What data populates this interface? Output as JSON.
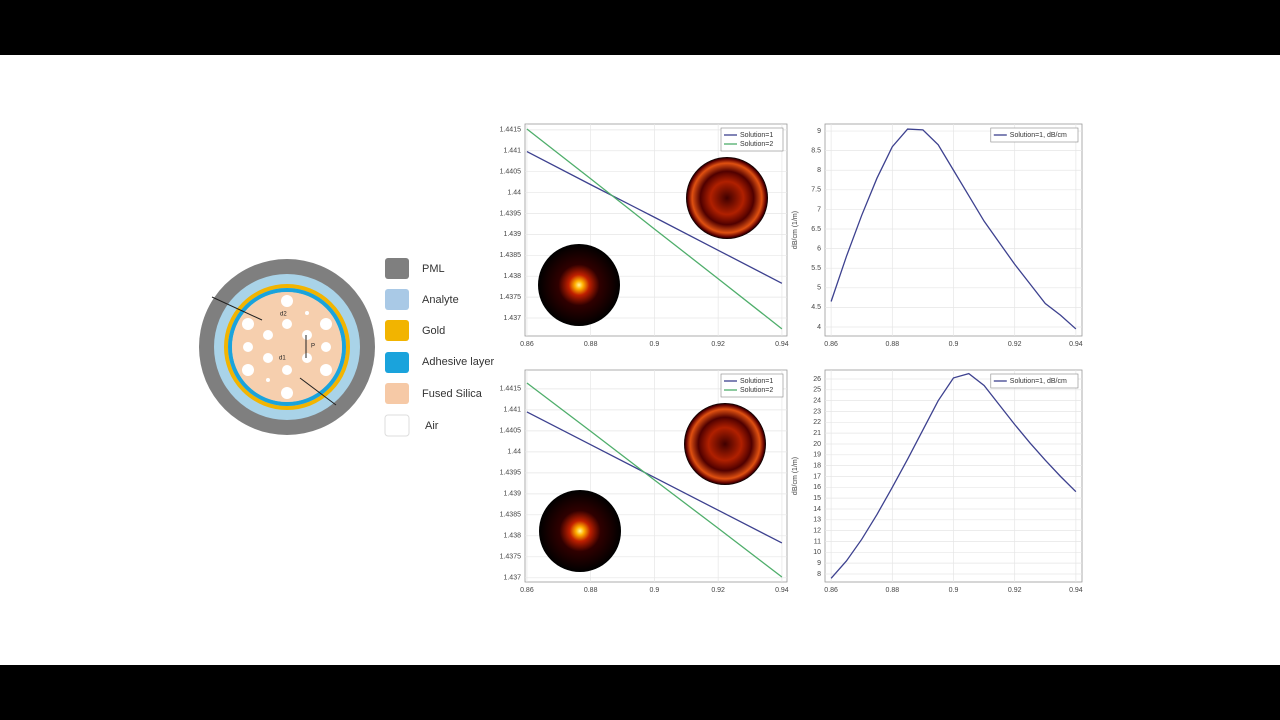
{
  "diagram": {
    "legend": [
      "PML",
      "Analyte",
      "Gold",
      "Adhesive layer",
      "Fused Silica",
      "Air"
    ],
    "labels": [
      "d2",
      "d1",
      "P"
    ]
  },
  "chart_data": [
    {
      "type": "line",
      "x": [
        0.86,
        0.88,
        0.9,
        0.92,
        0.94
      ],
      "xlim": [
        0.8594,
        0.9416
      ],
      "xticks": [
        0.86,
        0.88,
        0.9,
        0.92,
        0.94
      ],
      "ylim": [
        1.43657,
        1.44164
      ],
      "yticks": [
        1.437,
        1.4375,
        1.438,
        1.4385,
        1.439,
        1.4395,
        1.44,
        1.4405,
        1.441,
        1.4415
      ],
      "grid": true,
      "legend": "upper right",
      "series": [
        {
          "name": "Solution=1",
          "color": "#3d418f",
          "values": [
            1.44098,
            1.44019,
            1.43941,
            1.43862,
            1.43783
          ]
        },
        {
          "name": "Solution=2",
          "color": "#4fae6b",
          "values": [
            1.44152,
            1.44033,
            1.43913,
            1.43794,
            1.43674
          ]
        }
      ]
    },
    {
      "type": "line",
      "ylabel": "dB/cm (1/m)",
      "x": [
        0.86,
        0.865,
        0.87,
        0.875,
        0.88,
        0.885,
        0.89,
        0.895,
        0.9,
        0.905,
        0.91,
        0.915,
        0.92,
        0.925,
        0.93,
        0.935,
        0.94
      ],
      "xlim": [
        0.858,
        0.942
      ],
      "xticks": [
        0.86,
        0.88,
        0.9,
        0.92,
        0.94
      ],
      "ylim": [
        3.77,
        9.18
      ],
      "yticks": [
        4,
        4.5,
        5,
        5.5,
        6,
        6.5,
        7,
        7.5,
        8,
        8.5,
        9
      ],
      "grid": true,
      "legend": "upper right",
      "series": [
        {
          "name": "Solution=1, dB/cm",
          "color": "#3d418f",
          "values": [
            4.65,
            5.8,
            6.85,
            7.8,
            8.6,
            9.05,
            9.03,
            8.65,
            8.0,
            7.35,
            6.7,
            6.15,
            5.6,
            5.1,
            4.6,
            4.3,
            3.95
          ]
        }
      ]
    },
    {
      "type": "line",
      "x": [
        0.86,
        0.88,
        0.9,
        0.92,
        0.94
      ],
      "xlim": [
        0.8594,
        0.9416
      ],
      "xticks": [
        0.86,
        0.88,
        0.9,
        0.92,
        0.94
      ],
      "ylim": [
        1.4369,
        1.44195
      ],
      "yticks": [
        1.437,
        1.4375,
        1.438,
        1.4385,
        1.439,
        1.4395,
        1.44,
        1.4405,
        1.441,
        1.4415
      ],
      "grid": true,
      "legend": "upper right",
      "series": [
        {
          "name": "Solution=1",
          "color": "#3d418f",
          "values": [
            1.44095,
            1.44017,
            1.43939,
            1.43861,
            1.43783
          ]
        },
        {
          "name": "Solution=2",
          "color": "#4fae6b",
          "values": [
            1.44164,
            1.44049,
            1.43933,
            1.43818,
            1.43702
          ]
        }
      ]
    },
    {
      "type": "line",
      "ylabel": "dB/cm (1/m)",
      "x": [
        0.86,
        0.865,
        0.87,
        0.875,
        0.88,
        0.885,
        0.89,
        0.895,
        0.9,
        0.905,
        0.91,
        0.915,
        0.92,
        0.925,
        0.93,
        0.935,
        0.94
      ],
      "xlim": [
        0.858,
        0.942
      ],
      "xticks": [
        0.86,
        0.88,
        0.9,
        0.92,
        0.94
      ],
      "ylim": [
        7.26,
        26.83
      ],
      "yticks": [
        8,
        9,
        10,
        11,
        12,
        13,
        14,
        15,
        16,
        17,
        18,
        19,
        20,
        21,
        22,
        23,
        24,
        25,
        26
      ],
      "grid": true,
      "legend": "upper right",
      "series": [
        {
          "name": "Solution=1, dB/cm",
          "color": "#3d418f",
          "values": [
            7.6,
            9.2,
            11.2,
            13.5,
            16.0,
            18.6,
            21.3,
            24.0,
            26.1,
            26.5,
            25.4,
            23.6,
            21.8,
            20.1,
            18.5,
            17.0,
            15.6
          ]
        }
      ]
    }
  ]
}
